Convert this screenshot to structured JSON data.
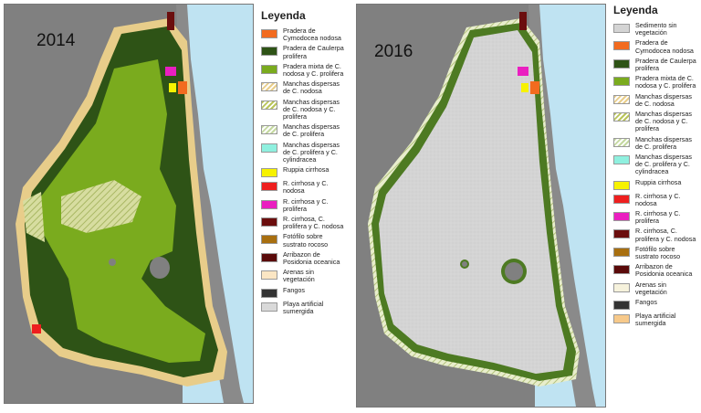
{
  "maps": [
    {
      "year": "2014",
      "legend_title": "Leyenda",
      "legend": [
        {
          "label": "Pradera de Cymodocea nodosa",
          "color": "#f26b1f",
          "pattern": "solid"
        },
        {
          "label": "Pradera de Caulerpa prolifera",
          "color": "#2e5316",
          "pattern": "solid"
        },
        {
          "label": "Pradera mixta de C. nodosa y C. prolifera",
          "color": "#7aab1e",
          "pattern": "solid"
        },
        {
          "label": "Manchas dispersas de C. nodosa",
          "color": "#e8cd8a",
          "pattern": "hatch"
        },
        {
          "label": "Manchas dispersas de C. nodosa y C. prolifera",
          "color": "#b9c45a",
          "pattern": "hatch"
        },
        {
          "label": "Manchas dispersas de C. prolifera",
          "color": "#c4d8a0",
          "pattern": "hatch"
        },
        {
          "label": "Manchas dispersas de C. prolifera y C. cylindracea",
          "color": "#8ff0df",
          "pattern": "solid"
        },
        {
          "label": "Ruppia cirrhosa",
          "color": "#f7f200",
          "pattern": "solid"
        },
        {
          "label": "R. cirrhosa y C. nodosa",
          "color": "#ee1f1f",
          "pattern": "solid"
        },
        {
          "label": "R. cirrhosa y C. prolifera",
          "color": "#ea1fc0",
          "pattern": "solid"
        },
        {
          "label": "R. cirrhosa, C. prolifera y C. nodosa",
          "color": "#6b0e0e",
          "pattern": "solid"
        },
        {
          "label": "Fotófilo sobre sustrato rocoso",
          "color": "#a86f10",
          "pattern": "solid"
        },
        {
          "label": "Arribazon de Posidonia oceanica",
          "color": "#5a0a0a",
          "pattern": "solid"
        },
        {
          "label": "Arenas sin vegetación",
          "color": "#fbe6c4",
          "pattern": "solid"
        },
        {
          "label": "Fangos",
          "color": "#333333",
          "pattern": "solid"
        },
        {
          "label": "Playa artificial sumergida",
          "color": "#d9d9d9",
          "pattern": "solid"
        }
      ]
    },
    {
      "year": "2016",
      "legend_title": "Leyenda",
      "legend": [
        {
          "label": "Sedimento sin vegetación",
          "color": "#d4d4d4",
          "pattern": "solid"
        },
        {
          "label": "Pradera de Cymodocea nodosa",
          "color": "#f26b1f",
          "pattern": "solid"
        },
        {
          "label": "Pradera de Caulerpa prolifera",
          "color": "#2e5316",
          "pattern": "solid"
        },
        {
          "label": "Pradera mixta de C. nodosa y C. prolifera",
          "color": "#7aab1e",
          "pattern": "solid"
        },
        {
          "label": "Manchas dispersas de C. nodosa",
          "color": "#e8cd8a",
          "pattern": "hatch"
        },
        {
          "label": "Manchas dispersas de C. nodosa y C. prolifera",
          "color": "#b9c45a",
          "pattern": "hatch"
        },
        {
          "label": "Manchas dispersas de C. prolifera",
          "color": "#c4d8a0",
          "pattern": "hatch"
        },
        {
          "label": "Manchas dispersas de C. prolifera y C. cylindracea",
          "color": "#8ff0df",
          "pattern": "solid"
        },
        {
          "label": "Ruppia cirrhosa",
          "color": "#f7f200",
          "pattern": "solid"
        },
        {
          "label": "R. cirrhosa y C. nodosa",
          "color": "#ee1f1f",
          "pattern": "solid"
        },
        {
          "label": "R. cirrhosa y C. prolifera",
          "color": "#ea1fc0",
          "pattern": "solid"
        },
        {
          "label": "R. cirrhosa, C. prolifera y C. nodosa",
          "color": "#6b0e0e",
          "pattern": "solid"
        },
        {
          "label": "Fotófilo sobre sustrato rocoso",
          "color": "#a86f10",
          "pattern": "solid"
        },
        {
          "label": "Arribazon de Posidonia oceanica",
          "color": "#5a0a0a",
          "pattern": "solid"
        },
        {
          "label": "Arenas sin vegetación",
          "color": "#f6f2dc",
          "pattern": "solid"
        },
        {
          "label": "Fangos",
          "color": "#333333",
          "pattern": "solid"
        },
        {
          "label": "Playa artificial sumergida",
          "color": "#f7c98a",
          "pattern": "solid"
        }
      ]
    }
  ],
  "colors": {
    "land": "#808080",
    "sea": "#bfe3f2",
    "sediment": "#d4d4d4",
    "caulerpa": "#2e5316",
    "mixed": "#7aab1e"
  }
}
